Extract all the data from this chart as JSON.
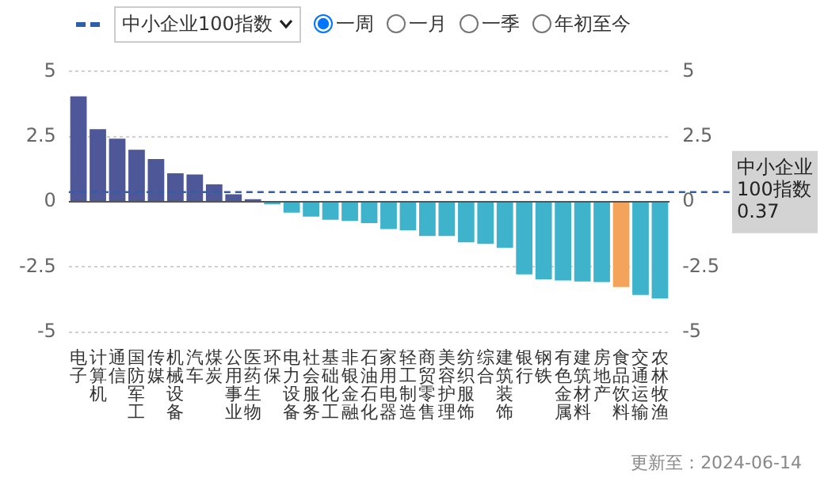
{
  "chart_data": {
    "type": "bar",
    "categories": [
      "电子",
      "计算机",
      "通信",
      "国防军工",
      "传媒",
      "机械设备",
      "汽车",
      "煤炭",
      "公用事业",
      "医药生物",
      "环保",
      "电力设备",
      "社会服务",
      "基础化工",
      "非银金融",
      "石油石化",
      "家用电器",
      "轻工制造",
      "商贸零售",
      "美容护理",
      "纺织服饰",
      "综合",
      "建筑装饰",
      "银行",
      "钢铁",
      "有色金属",
      "建筑材料",
      "房地产",
      "食品饮料",
      "交通运输",
      "农林牧渔"
    ],
    "values": [
      4.05,
      2.79,
      2.42,
      2.0,
      1.64,
      1.09,
      1.05,
      0.67,
      0.29,
      0.1,
      -0.1,
      -0.42,
      -0.57,
      -0.69,
      -0.74,
      -0.82,
      -1.05,
      -1.09,
      -1.31,
      -1.31,
      -1.56,
      -1.62,
      -1.77,
      -2.79,
      -2.98,
      -3.02,
      -3.06,
      -3.08,
      -3.27,
      -3.58,
      -3.71
    ],
    "colors": [
      "#4e5797",
      "#4e5797",
      "#4e5797",
      "#4e5797",
      "#4e5797",
      "#4e5797",
      "#4e5797",
      "#4e5797",
      "#4e5797",
      "#4e5797",
      "#3fb3cc",
      "#3fb3cc",
      "#3fb3cc",
      "#3fb3cc",
      "#3fb3cc",
      "#3fb3cc",
      "#3fb3cc",
      "#3fb3cc",
      "#3fb3cc",
      "#3fb3cc",
      "#3fb3cc",
      "#3fb3cc",
      "#3fb3cc",
      "#3fb3cc",
      "#3fb3cc",
      "#3fb3cc",
      "#3fb3cc",
      "#3fb3cc",
      "#f4a45a",
      "#3fb3cc",
      "#3fb3cc"
    ],
    "ylim": [
      -5,
      5
    ],
    "yticks": [
      5,
      2.5,
      0,
      -2.5,
      -5
    ],
    "y2lim": [
      -5,
      5
    ],
    "y2ticks": [
      5,
      2.5,
      0,
      -2.5,
      -5
    ],
    "grid": "y",
    "legend_title": "中小企业100指数",
    "ref_lines": [
      {
        "axis": "y",
        "value": 0.37,
        "label": "中小企业100指数 0.37",
        "color": "#2f5fa8",
        "line_style": "dashed"
      }
    ],
    "annotations": [
      "一周",
      "一月",
      "一季",
      "年初至今",
      "更新至：2024-06-14"
    ]
  }
}
